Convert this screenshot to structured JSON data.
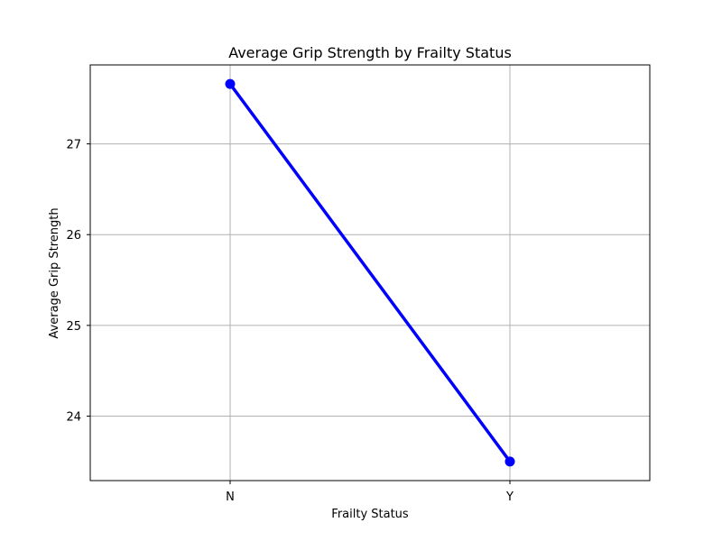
{
  "chart_data": {
    "type": "line",
    "title": "Average Grip Strength by Frailty Status",
    "xlabel": "Frailty Status",
    "ylabel": "Average Grip Strength",
    "categories": [
      "N",
      "Y"
    ],
    "series": [
      {
        "values": [
          27.66,
          23.5
        ],
        "color": "#0000ff"
      }
    ],
    "yticks": [
      24,
      25,
      26,
      27
    ],
    "ytick_labels": [
      "24",
      "25",
      "26",
      "27"
    ],
    "ylim": [
      23.29,
      27.87
    ],
    "grid": true
  }
}
